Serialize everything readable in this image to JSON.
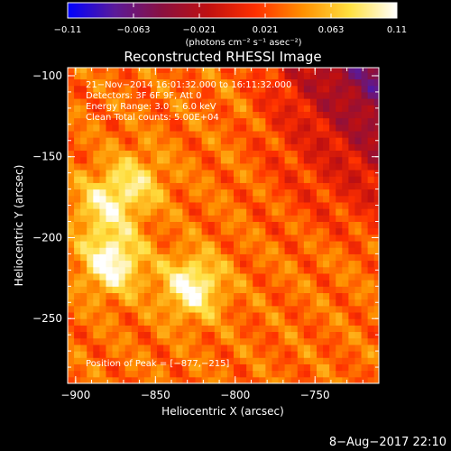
{
  "chart_data": {
    "type": "heatmap",
    "title": "Reconstructed RHESSI Image",
    "xlabel": "Heliocentric X (arcsec)",
    "ylabel": "Heliocentric Y (arcsec)",
    "xlim": [
      -905,
      -710
    ],
    "ylim": [
      -290,
      -95
    ],
    "x_ticks": [
      -900,
      -850,
      -800,
      -750
    ],
    "y_ticks": [
      -100,
      -150,
      -200,
      -250
    ],
    "colorbar": {
      "label": "(photons cm⁻² s⁻¹ asec⁻²)",
      "range": [
        -0.11,
        0.11
      ],
      "ticks": [
        "−0.11",
        "−0.063",
        "−0.021",
        "0.021",
        "0.063",
        "0.11"
      ],
      "colors": [
        "#0000ff",
        "#5a1a9a",
        "#8a1040",
        "#c01010",
        "#ff3000",
        "#ff9000",
        "#ffe040",
        "#ffffff"
      ]
    },
    "annotations": [
      "21−Nov−2014 16:01:32.000 to 16:11:32.000",
      "Detectors: 3F 6F 9F, Att 0",
      "Energy Range: 3.0 − 6.0 keV",
      "Clean     Total counts: 5.00E+04"
    ],
    "peak_label": "Position of Peak = [−877,−215]",
    "peak": [
      -877,
      -215
    ],
    "sources": [
      {
        "x": -877,
        "y": -215,
        "value": 0.11
      },
      {
        "x": -827,
        "y": -230,
        "value": 0.105
      },
      {
        "x": -882,
        "y": -180,
        "value": 0.085
      },
      {
        "x": -862,
        "y": -165,
        "value": 0.075
      }
    ],
    "timestamp": "8−Aug−2017 22:10"
  }
}
